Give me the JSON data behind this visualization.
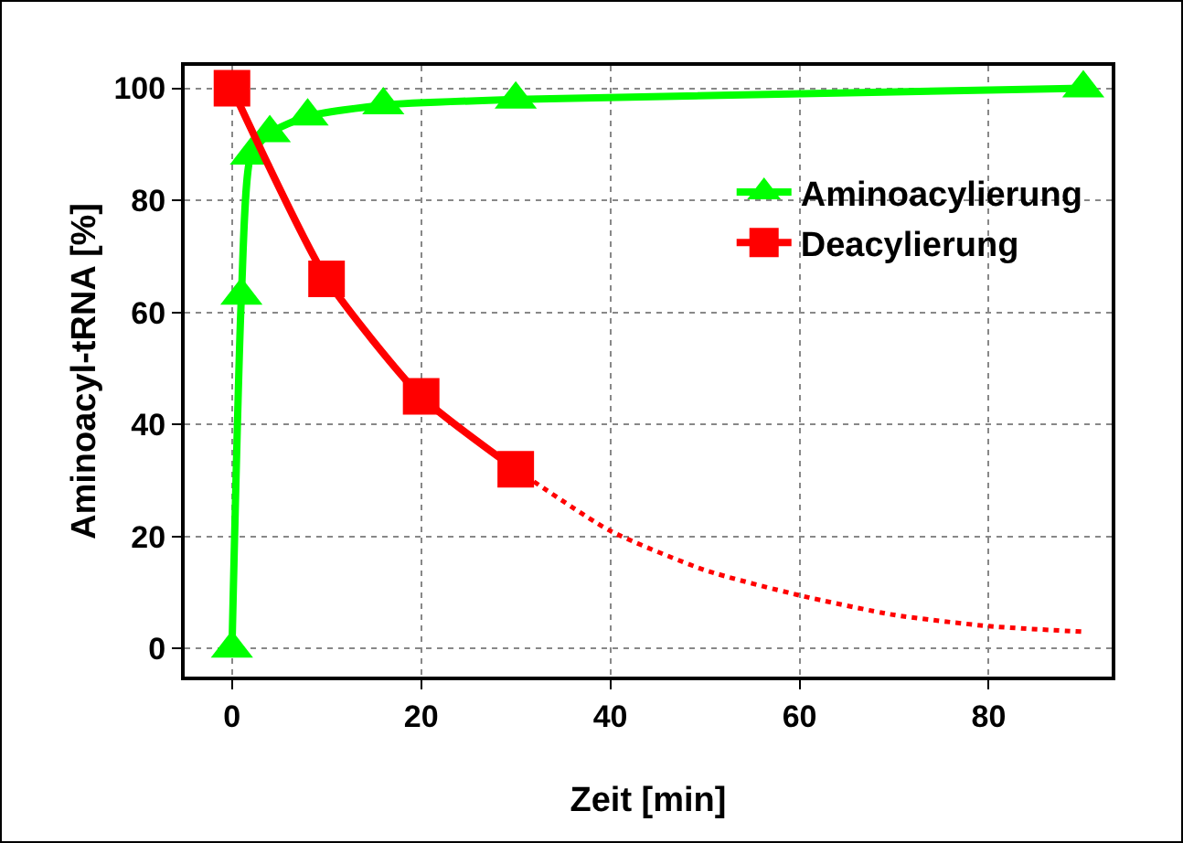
{
  "chart_data": {
    "type": "line",
    "xlabel": "Zeit [min]",
    "ylabel": "Aminoacyl-tRNA [%]",
    "xlim": [
      -5,
      93
    ],
    "xticks": [
      0,
      20,
      40,
      60,
      80
    ],
    "ylim": [
      -5,
      104
    ],
    "yticks": [
      0,
      20,
      40,
      60,
      80,
      100
    ],
    "grid": true,
    "legend": "top right",
    "series": [
      {
        "name": "Aminoacylierung",
        "color": "#00ff00",
        "marker": "triangle",
        "line_style": "solid",
        "x": [
          0,
          1,
          2,
          4,
          8,
          16,
          30,
          90
        ],
        "values": [
          0,
          63,
          88,
          92,
          95,
          97,
          98,
          100
        ]
      },
      {
        "name": "Deacylierung",
        "color": "#ff0000",
        "marker": "square",
        "line_style": "solid",
        "x": [
          0,
          10,
          20,
          30
        ],
        "values": [
          100,
          66,
          45,
          32
        ]
      },
      {
        "color": "#ff0000",
        "marker": "none",
        "line_style": "dotted",
        "x": [
          30,
          40,
          50,
          60,
          70,
          80,
          90
        ],
        "values": [
          32,
          21,
          14,
          9.5,
          6,
          4,
          3
        ]
      }
    ]
  }
}
